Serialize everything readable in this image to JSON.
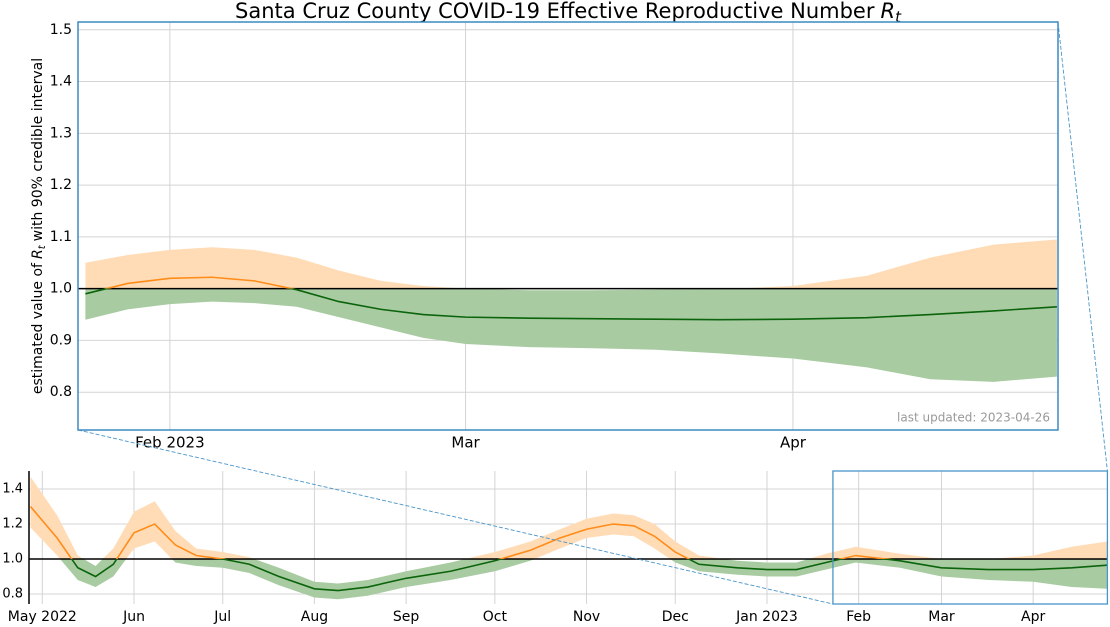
{
  "chart_data": [
    {
      "type": "line",
      "title": "Santa Cruz County COVID-19 Effective Reproductive Number",
      "title_symbol": "R",
      "symbol_subscript": "t",
      "ylabel_prefix": "estimated value of",
      "ylabel_suffix": "with 90% credible interval",
      "annotation": "last updated: 2023-04-26",
      "x": [
        268,
        272,
        276,
        280,
        284,
        288,
        292,
        296,
        300,
        304,
        310,
        316,
        322,
        328,
        335,
        342,
        348,
        354,
        360
      ],
      "values": [
        0.99,
        1.01,
        1.02,
        1.022,
        1.015,
        0.998,
        0.975,
        0.96,
        0.95,
        0.945,
        0.943,
        0.942,
        0.941,
        0.94,
        0.941,
        0.944,
        0.95,
        0.957,
        0.965
      ],
      "lower": [
        0.94,
        0.96,
        0.97,
        0.975,
        0.972,
        0.965,
        0.945,
        0.925,
        0.905,
        0.893,
        0.887,
        0.885,
        0.882,
        0.875,
        0.865,
        0.848,
        0.825,
        0.82,
        0.83
      ],
      "upper": [
        1.05,
        1.065,
        1.075,
        1.08,
        1.075,
        1.06,
        1.035,
        1.015,
        1.005,
        1.0,
        0.997,
        0.997,
        0.998,
        0.999,
        1.005,
        1.025,
        1.06,
        1.085,
        1.095
      ],
      "reference_line": 1,
      "colors": {
        "above_line": "#ff8c1a",
        "below_line": "#0b640b",
        "above_band": "#ffdcb6",
        "below_band": "#a9cba2"
      },
      "xlim": [
        267.3,
        360.1
      ],
      "xticks": [
        {
          "value": 276,
          "label": "Feb 2023"
        },
        {
          "value": 304,
          "label": "Mar"
        },
        {
          "value": 335,
          "label": "Apr"
        }
      ],
      "ylim": [
        0.727,
        1.515
      ],
      "yticks": [
        0.8,
        0.9,
        {
          "value": 1,
          "label": "1.0"
        },
        1.1,
        1.2,
        1.3,
        1.4,
        1.5
      ],
      "grid": true
    },
    {
      "type": "line",
      "x": [
        -4,
        5,
        12,
        18,
        24,
        31,
        38,
        45,
        52,
        61,
        70,
        80,
        92,
        100,
        110,
        123,
        138,
        153,
        165,
        175,
        184,
        193,
        200,
        207,
        214,
        222,
        235,
        245,
        255,
        265,
        275,
        290,
        304,
        320,
        335,
        348,
        360
      ],
      "values": [
        1.3,
        1.12,
        0.95,
        0.9,
        0.97,
        1.15,
        1.2,
        1.08,
        1.02,
        1.0,
        0.97,
        0.9,
        0.83,
        0.82,
        0.84,
        0.89,
        0.93,
        0.99,
        1.05,
        1.12,
        1.17,
        1.2,
        1.19,
        1.13,
        1.04,
        0.97,
        0.95,
        0.94,
        0.94,
        0.98,
        1.02,
        0.99,
        0.95,
        0.94,
        0.94,
        0.95,
        0.965
      ],
      "lower": [
        1.18,
        1.02,
        0.88,
        0.84,
        0.9,
        1.06,
        1.1,
        0.98,
        0.96,
        0.95,
        0.92,
        0.85,
        0.78,
        0.77,
        0.79,
        0.84,
        0.88,
        0.93,
        0.99,
        1.06,
        1.12,
        1.14,
        1.13,
        1.06,
        0.98,
        0.93,
        0.91,
        0.9,
        0.9,
        0.94,
        0.98,
        0.95,
        0.9,
        0.88,
        0.87,
        0.84,
        0.83
      ],
      "upper": [
        1.47,
        1.25,
        1.02,
        0.96,
        1.06,
        1.27,
        1.33,
        1.16,
        1.06,
        1.04,
        1.01,
        0.95,
        0.87,
        0.86,
        0.88,
        0.93,
        0.98,
        1.04,
        1.1,
        1.17,
        1.23,
        1.26,
        1.25,
        1.2,
        1.1,
        1.02,
        0.99,
        0.98,
        0.98,
        1.03,
        1.07,
        1.03,
        1.0,
        1.0,
        1.02,
        1.07,
        1.1
      ],
      "reference_line": 1,
      "colors": {
        "above_line": "#ff8c1a",
        "below_line": "#0b640b",
        "above_band": "#ffdcb6",
        "below_band": "#a9cba2"
      },
      "xlim": [
        -4.5,
        360.3
      ],
      "xticks": [
        {
          "value": 0,
          "label": "May 2022"
        },
        {
          "value": 31,
          "label": "Jun"
        },
        {
          "value": 61,
          "label": "Jul"
        },
        {
          "value": 92,
          "label": "Aug"
        },
        {
          "value": 123,
          "label": "Sep"
        },
        {
          "value": 153,
          "label": "Oct"
        },
        {
          "value": 184,
          "label": "Nov"
        },
        {
          "value": 214,
          "label": "Dec"
        },
        {
          "value": 245,
          "label": "Jan 2023"
        },
        {
          "value": 276,
          "label": "Feb"
        },
        {
          "value": 304,
          "label": "Mar"
        },
        {
          "value": 335,
          "label": "Apr"
        }
      ],
      "ylim": [
        0.743,
        1.503
      ],
      "yticks": [
        0.8,
        {
          "value": 1,
          "label": "1.0"
        },
        1.2,
        1.4
      ],
      "grid": true
    }
  ]
}
